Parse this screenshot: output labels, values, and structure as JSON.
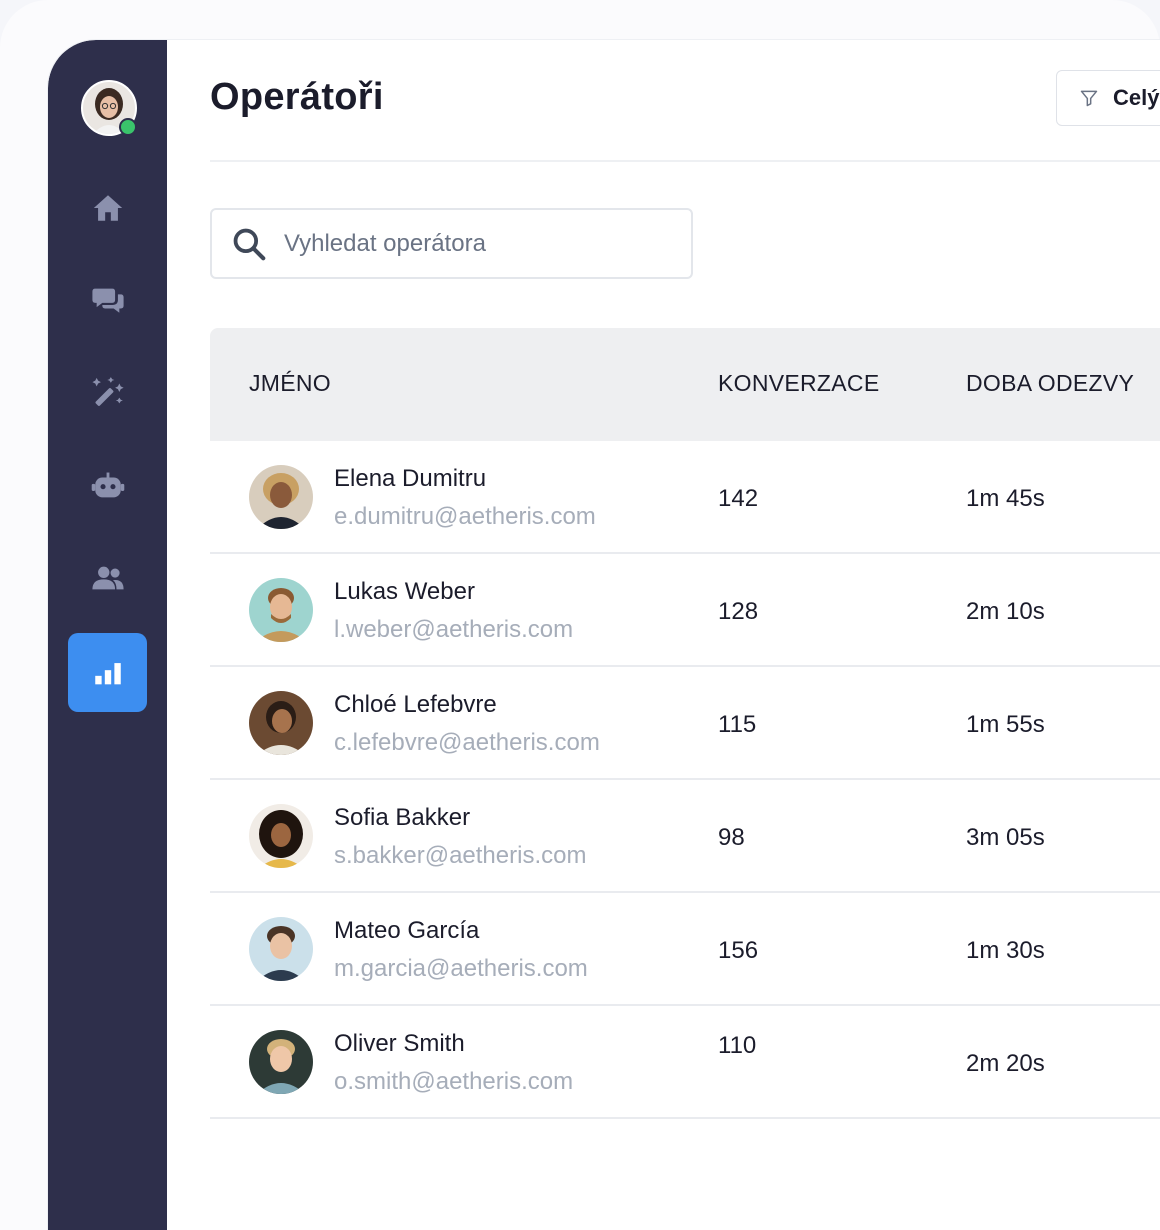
{
  "header": {
    "title": "Operátoři",
    "filter_label": "Celý"
  },
  "search": {
    "placeholder": "Vyhledat operátora",
    "value": ""
  },
  "sidebar": {
    "items": [
      {
        "icon": "home-icon",
        "active": false
      },
      {
        "icon": "chat-icon",
        "active": false
      },
      {
        "icon": "magic-wand-icon",
        "active": false
      },
      {
        "icon": "bot-icon",
        "active": false
      },
      {
        "icon": "users-icon",
        "active": false
      },
      {
        "icon": "bar-chart-icon",
        "active": true
      }
    ]
  },
  "table": {
    "columns": [
      "JMÉNO",
      "KONVERZACE",
      "DOBA ODEZVY"
    ],
    "rows": [
      {
        "name": "Elena Dumitru",
        "email": "e.dumitru@aetheris.com",
        "conversations": "142",
        "response_time": "1m 45s"
      },
      {
        "name": "Lukas Weber",
        "email": "l.weber@aetheris.com",
        "conversations": "128",
        "response_time": "2m 10s"
      },
      {
        "name": "Chloé Lefebvre",
        "email": "c.lefebvre@aetheris.com",
        "conversations": "115",
        "response_time": "1m 55s"
      },
      {
        "name": "Sofia Bakker",
        "email": "s.bakker@aetheris.com",
        "conversations": "98",
        "response_time": "3m 05s"
      },
      {
        "name": "Mateo García",
        "email": "m.garcia@aetheris.com",
        "conversations": "156",
        "response_time": "1m 30s"
      },
      {
        "name": "Oliver Smith",
        "email": "o.smith@aetheris.com",
        "conversations": "110",
        "response_time": "2m 20s"
      }
    ]
  },
  "colors": {
    "sidebar": "#2e2f4b",
    "accent": "#3d8ef0",
    "online": "#3ac46b",
    "muted_text": "#a6adb9"
  }
}
